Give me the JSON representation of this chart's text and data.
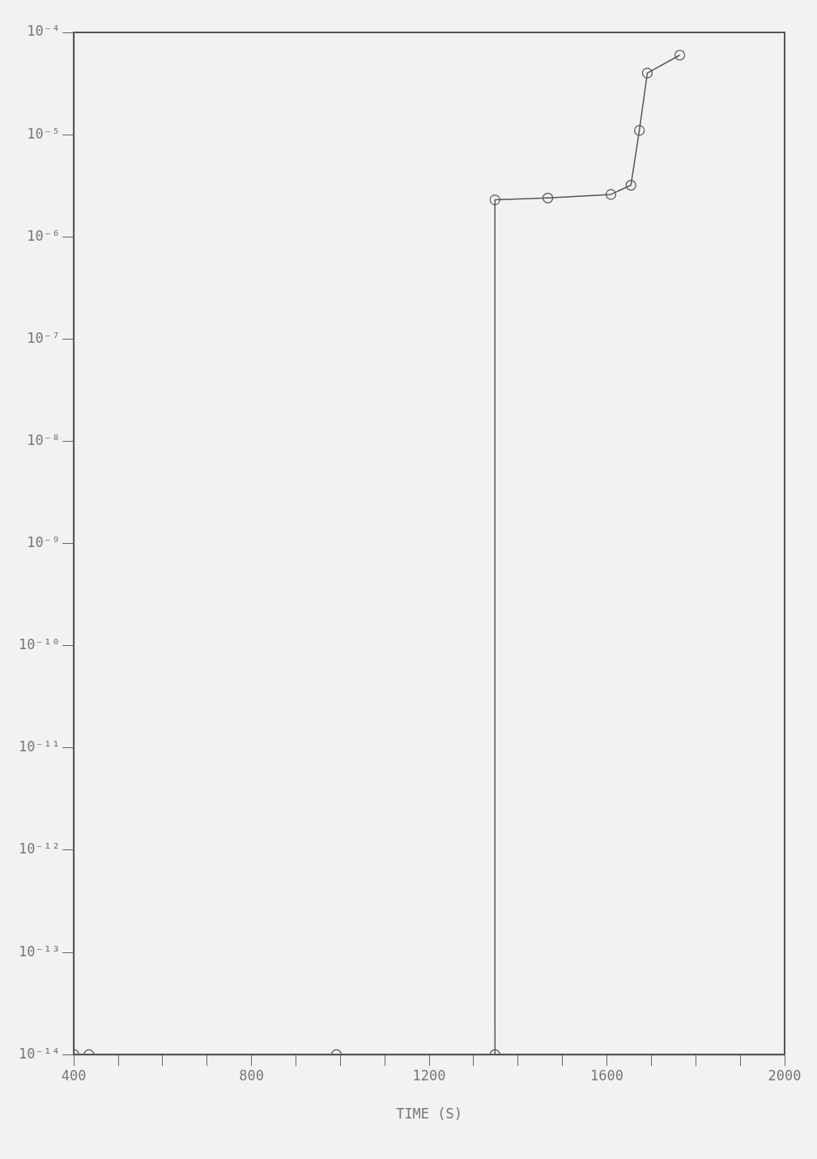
{
  "chart_data": {
    "type": "line",
    "xlabel": "TIME (S)",
    "log": "y",
    "grid": false,
    "marker": "circle",
    "line_style": "solid",
    "xlim": [
      400,
      2000
    ],
    "xticks": [
      400,
      {
        "value": 500,
        "label": null
      },
      {
        "value": 600,
        "label": null
      },
      {
        "value": 700,
        "label": null
      },
      800,
      {
        "value": 900,
        "label": null
      },
      {
        "value": 1000,
        "label": null
      },
      {
        "value": 1100,
        "label": null
      },
      1200,
      {
        "value": 1300,
        "label": null
      },
      {
        "value": 1400,
        "label": null
      },
      {
        "value": 1500,
        "label": null
      },
      1600,
      {
        "value": 1700,
        "label": null
      },
      {
        "value": 1800,
        "label": null
      },
      {
        "value": 1900,
        "label": null
      },
      2000
    ],
    "ylim": [
      1e-14,
      0.0001
    ],
    "yticks": [
      {
        "value": 1e-14,
        "label": "10⁻¹⁴"
      },
      {
        "value": 1e-13,
        "label": "10⁻¹³"
      },
      {
        "value": 1e-12,
        "label": "10⁻¹²"
      },
      {
        "value": 1e-11,
        "label": "10⁻¹¹"
      },
      {
        "value": 1e-10,
        "label": "10⁻¹⁰"
      },
      {
        "value": 1e-09,
        "label": "10⁻⁹"
      },
      {
        "value": 1e-08,
        "label": "10⁻⁸"
      },
      {
        "value": 1e-07,
        "label": "10⁻⁷"
      },
      {
        "value": 1e-06,
        "label": "10⁻⁶"
      },
      {
        "value": 1e-05,
        "label": "10⁻⁵"
      },
      {
        "value": 0.0001,
        "label": "10⁻⁴"
      }
    ],
    "series": [
      {
        "color": "#555555",
        "x": [
          400,
          434,
          991,
          1348,
          1348,
          1467,
          1609,
          1654,
          1673,
          1691,
          1764
        ],
        "values": [
          1e-14,
          1e-14,
          1e-14,
          1e-14,
          2.3e-06,
          2.4e-06,
          2.6e-06,
          3.2e-06,
          1.1e-05,
          4e-05,
          6e-05
        ]
      }
    ]
  }
}
